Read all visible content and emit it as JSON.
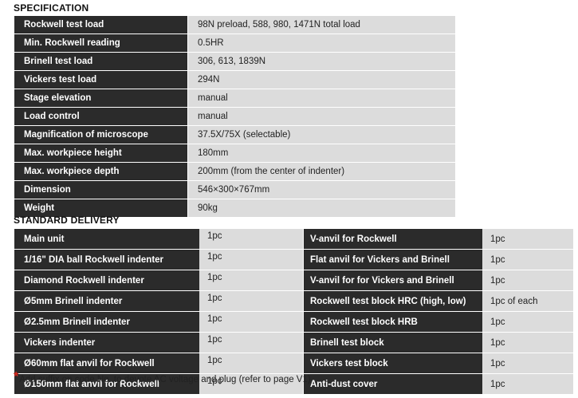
{
  "spec_heading": "SPECIFICATION",
  "specification": [
    {
      "label": "Rockwell test load",
      "value": "98N preload, 588, 980, 1471N total load"
    },
    {
      "label": "Min. Rockwell reading",
      "value": "0.5HR"
    },
    {
      "label": "Brinell test load",
      "value": "306, 613, 1839N"
    },
    {
      "label": "Vickers test load",
      "value": "294N"
    },
    {
      "label": "Stage elevation",
      "value": "manual"
    },
    {
      "label": "Load control",
      "value": "manual"
    },
    {
      "label": "Magnification of microscope",
      "value": "37.5X/75X (selectable)"
    },
    {
      "label": "Max. workpiece height",
      "value": "180mm"
    },
    {
      "label": "Max. workpiece depth",
      "value": "200mm (from the center of indenter)"
    },
    {
      "label": "Dimension",
      "value": "546×300×767mm"
    },
    {
      "label": "Weight",
      "value": "90kg"
    }
  ],
  "delivery_heading": "STANDARD DELIVERY",
  "delivery": [
    {
      "left_label": "Main unit",
      "left_qty": "1pc",
      "right_label": "V-anvil for Rockwell",
      "right_qty": "1pc"
    },
    {
      "left_label": "1/16\" DIA ball Rockwell indenter",
      "left_qty": "1pc",
      "right_label": "Flat anvil for Vickers and Brinell",
      "right_qty": "1pc"
    },
    {
      "left_label": "Diamond Rockwell indenter",
      "left_qty": "1pc",
      "right_label": "V-anvil for for Vickers and Brinell",
      "right_qty": "1pc"
    },
    {
      "left_label": "Ø5mm Brinell indenter",
      "left_qty": "1pc",
      "right_label": "Rockwell test block HRC (high, low)",
      "right_qty": "1pc of each"
    },
    {
      "left_label": "Ø2.5mm Brinell indenter",
      "left_qty": "1pc",
      "right_label": "Rockwell test block HRB",
      "right_qty": "1pc"
    },
    {
      "left_label": "Vickers indenter",
      "left_qty": "1pc",
      "right_label": "Brinell test block",
      "right_qty": "1pc"
    },
    {
      "left_label": "Ø60mm flat anvil for Rockwell",
      "left_qty": "1pc",
      "right_label": "Vickers test block",
      "right_qty": "1pc"
    },
    {
      "left_label": "Ø150mm flat anvil for Rockwell",
      "left_qty": "1pc",
      "right_label": "Anti-dust cover",
      "right_qty": "1pc"
    }
  ],
  "footnote": {
    "marker": "*",
    "text": "Add suffix on code No. to devote AC voltage and plug (refer to page V1)"
  }
}
